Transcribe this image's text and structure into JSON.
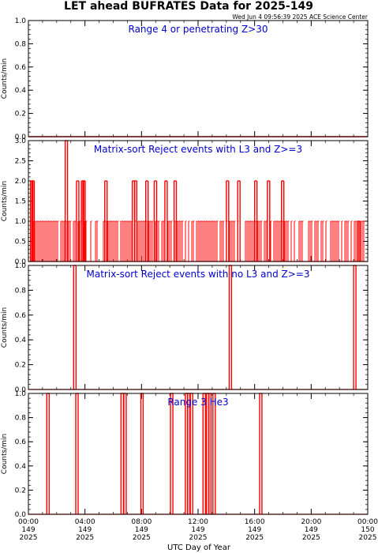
{
  "header": {
    "title": "LET ahead BUFRATES Data for 2025-149",
    "timestamp": "Wed Jun  4 09:56:39 2025 ACE Science Center"
  },
  "colors": {
    "series": "#ff0000",
    "label": "#0000cc",
    "axis": "#000000"
  },
  "chart_data": [
    {
      "type": "line",
      "label": "Range 4 or  penetrating Z>30",
      "ylabel": "Counts/min",
      "ylim": [
        0,
        1.0
      ],
      "yticks": [
        "0.0",
        "0.2",
        "0.4",
        "0.6",
        "0.8",
        "1.0"
      ],
      "xlim": [
        0,
        24
      ],
      "x": [
        0,
        24
      ],
      "y": [
        0,
        0
      ]
    },
    {
      "type": "line",
      "label": "Matrix-sort Reject events with L3 and Z>=3",
      "ylabel": "Counts/min",
      "ylim": [
        0,
        3.0
      ],
      "yticks": [
        "0.0",
        "0.5",
        "1.0",
        "1.5",
        "2.0",
        "2.5",
        "3.0"
      ],
      "xlim": [
        0,
        24
      ],
      "density_max": 1,
      "spikes": [
        {
          "x": 0.15,
          "y": 2
        },
        {
          "x": 0.25,
          "y": 2
        },
        {
          "x": 2.6,
          "y": 3
        },
        {
          "x": 3.4,
          "y": 2
        },
        {
          "x": 3.75,
          "y": 2
        },
        {
          "x": 3.85,
          "y": 2
        },
        {
          "x": 5.4,
          "y": 2
        },
        {
          "x": 7.35,
          "y": 2
        },
        {
          "x": 7.5,
          "y": 2
        },
        {
          "x": 8.3,
          "y": 2
        },
        {
          "x": 8.9,
          "y": 2
        },
        {
          "x": 9.65,
          "y": 2
        },
        {
          "x": 10.3,
          "y": 2
        },
        {
          "x": 14.0,
          "y": 2
        },
        {
          "x": 14.8,
          "y": 2
        },
        {
          "x": 16.0,
          "y": 2
        },
        {
          "x": 16.9,
          "y": 2
        },
        {
          "x": 17.9,
          "y": 2
        },
        {
          "x": 23.3,
          "y": 1
        }
      ]
    },
    {
      "type": "line",
      "label": "Matrix-sort Reject events with no L3 and Z>=3",
      "ylabel": "Counts/min",
      "ylim": [
        0,
        1.0
      ],
      "yticks": [
        "0.0",
        "0.2",
        "0.4",
        "0.6",
        "0.8",
        "1.0"
      ],
      "xlim": [
        0,
        24
      ],
      "spikes": [
        {
          "x": 3.2,
          "y": 1
        },
        {
          "x": 14.2,
          "y": 1
        },
        {
          "x": 23.0,
          "y": 1
        }
      ]
    },
    {
      "type": "line",
      "label": "Range 3 He3",
      "ylabel": "Counts/min",
      "ylim": [
        0,
        1.0
      ],
      "yticks": [
        "0.0",
        "0.2",
        "0.4",
        "0.6",
        "0.8",
        "1.0"
      ],
      "xlim": [
        0,
        24
      ],
      "spikes": [
        {
          "x": 1.3,
          "y": 1
        },
        {
          "x": 3.35,
          "y": 1
        },
        {
          "x": 6.55,
          "y": 1
        },
        {
          "x": 6.75,
          "y": 1
        },
        {
          "x": 7.95,
          "y": 1
        },
        {
          "x": 10.05,
          "y": 1
        },
        {
          "x": 11.1,
          "y": 1
        },
        {
          "x": 11.25,
          "y": 1
        },
        {
          "x": 11.45,
          "y": 1
        },
        {
          "x": 12.35,
          "y": 1
        },
        {
          "x": 12.6,
          "y": 1
        },
        {
          "x": 12.75,
          "y": 1
        },
        {
          "x": 13.05,
          "y": 1
        },
        {
          "x": 16.35,
          "y": 1
        }
      ]
    }
  ],
  "xaxis": {
    "ticks": [
      {
        "x": 0,
        "time": "00:00",
        "day": "149",
        "year": "2025"
      },
      {
        "x": 4,
        "time": "04:00",
        "day": "149",
        "year": "2025"
      },
      {
        "x": 8,
        "time": "08:00",
        "day": "149",
        "year": "2025"
      },
      {
        "x": 12,
        "time": "12:00",
        "day": "149",
        "year": "2025"
      },
      {
        "x": 16,
        "time": "16:00",
        "day": "149",
        "year": "2025"
      },
      {
        "x": 20,
        "time": "20:00",
        "day": "149",
        "year": "2025"
      },
      {
        "x": 24,
        "time": "00:00",
        "day": "150",
        "year": "2025"
      }
    ],
    "xlabel": "UTC Day of Year"
  }
}
